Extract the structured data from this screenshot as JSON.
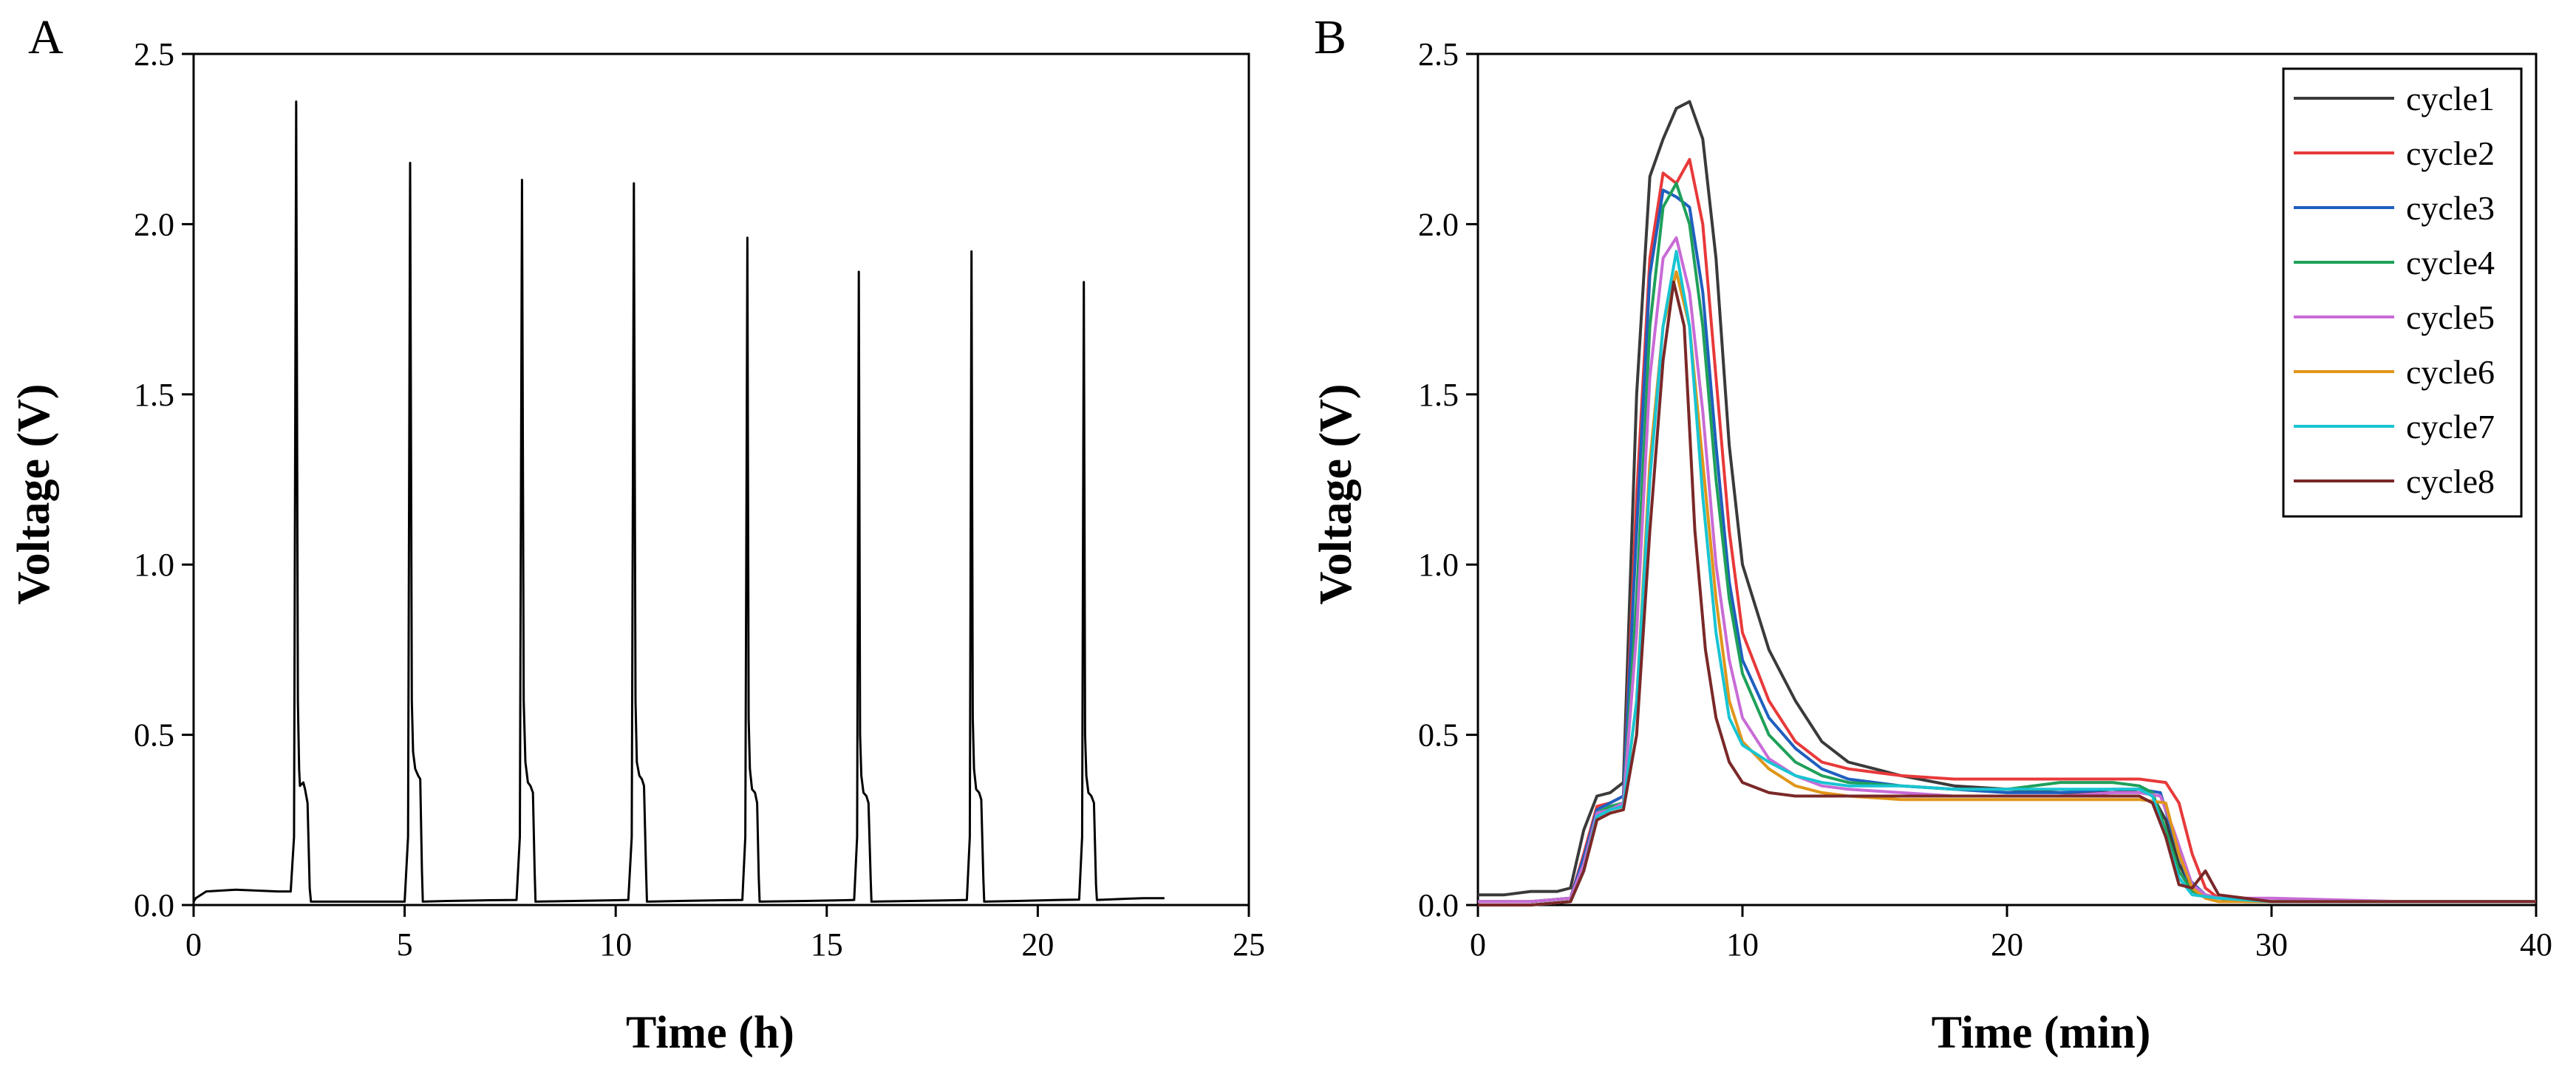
{
  "chart_data": [
    {
      "panel_label": "A",
      "type": "line",
      "xlabel": "Time (h)",
      "ylabel": "Voltage (V)",
      "xlim": [
        0,
        25
      ],
      "ylim": [
        0,
        2.5
      ],
      "xticks": [
        0,
        5,
        10,
        15,
        20,
        25
      ],
      "yticks": [
        0.0,
        0.5,
        1.0,
        1.5,
        2.0,
        2.5
      ],
      "xtick_labels": [
        "0",
        "5",
        "10",
        "15",
        "20",
        "25"
      ],
      "ytick_labels": [
        "0.0",
        "0.5",
        "1.0",
        "1.5",
        "2.0",
        "2.5"
      ],
      "grid": false,
      "series": [
        {
          "name": "voltage",
          "color": "#000000",
          "x": [
            0.0,
            0.05,
            0.3,
            1.0,
            2.0,
            2.3,
            2.38,
            2.43,
            2.47,
            2.5,
            2.52,
            2.6,
            2.64,
            2.7,
            2.75,
            2.78,
            3.0,
            4.0,
            5.0,
            5.08,
            5.13,
            5.17,
            5.2,
            5.25,
            5.32,
            5.37,
            5.41,
            5.43,
            6.0,
            7.0,
            7.65,
            7.73,
            7.78,
            7.82,
            7.86,
            7.92,
            7.98,
            8.04,
            8.08,
            8.1,
            9.0,
            10.0,
            10.3,
            10.38,
            10.43,
            10.47,
            10.5,
            10.56,
            10.62,
            10.67,
            10.72,
            10.74,
            11.5,
            12.5,
            13.0,
            13.07,
            13.12,
            13.15,
            13.18,
            13.23,
            13.3,
            13.35,
            13.39,
            13.41,
            14.5,
            15.4,
            15.65,
            15.72,
            15.76,
            15.79,
            15.82,
            15.87,
            15.94,
            15.99,
            16.04,
            16.06,
            17.0,
            18.0,
            18.32,
            18.39,
            18.43,
            18.46,
            18.49,
            18.54,
            18.61,
            18.66,
            18.71,
            18.73,
            19.5,
            20.5,
            20.98,
            21.05,
            21.09,
            21.12,
            21.15,
            21.2,
            21.27,
            21.33,
            21.38,
            21.4,
            22.0,
            22.5,
            23.0
          ],
          "y": [
            0.01,
            0.02,
            0.04,
            0.045,
            0.04,
            0.04,
            0.2,
            2.36,
            0.6,
            0.4,
            0.35,
            0.36,
            0.34,
            0.3,
            0.05,
            0.01,
            0.01,
            0.01,
            0.01,
            0.2,
            2.18,
            0.6,
            0.45,
            0.4,
            0.38,
            0.37,
            0.1,
            0.01,
            0.012,
            0.014,
            0.015,
            0.2,
            2.13,
            0.6,
            0.42,
            0.36,
            0.35,
            0.33,
            0.1,
            0.01,
            0.012,
            0.014,
            0.015,
            0.2,
            2.12,
            0.6,
            0.42,
            0.38,
            0.37,
            0.35,
            0.1,
            0.01,
            0.012,
            0.014,
            0.015,
            0.2,
            1.96,
            0.55,
            0.4,
            0.34,
            0.33,
            0.3,
            0.08,
            0.01,
            0.012,
            0.014,
            0.015,
            0.2,
            1.86,
            0.5,
            0.38,
            0.33,
            0.32,
            0.3,
            0.08,
            0.01,
            0.012,
            0.014,
            0.015,
            0.2,
            1.92,
            0.55,
            0.4,
            0.34,
            0.33,
            0.31,
            0.08,
            0.01,
            0.012,
            0.015,
            0.016,
            0.2,
            1.83,
            0.5,
            0.38,
            0.33,
            0.32,
            0.3,
            0.06,
            0.015,
            0.018,
            0.02,
            0.02
          ]
        }
      ]
    },
    {
      "panel_label": "B",
      "type": "line",
      "xlabel": "Time (min)",
      "ylabel": "Voltage (V)",
      "xlim": [
        0,
        40
      ],
      "ylim": [
        0,
        2.5
      ],
      "xticks": [
        0,
        10,
        20,
        30,
        40
      ],
      "yticks": [
        0.0,
        0.5,
        1.0,
        1.5,
        2.0,
        2.5
      ],
      "xtick_labels": [
        "0",
        "10",
        "20",
        "30",
        "40"
      ],
      "ytick_labels": [
        "0.0",
        "0.5",
        "1.0",
        "1.5",
        "2.0",
        "2.5"
      ],
      "grid": false,
      "legend_position": "top-right",
      "series": [
        {
          "name": "cycle1",
          "color": "#3a3a3a",
          "x": [
            0,
            1,
            2,
            3,
            3.5,
            4,
            4.5,
            5,
            5.5,
            6,
            6.5,
            7,
            7.5,
            8,
            8.5,
            9,
            9.5,
            10,
            11,
            12,
            13,
            14,
            16,
            18,
            20,
            22,
            24,
            25,
            25.5,
            26,
            26.5,
            27,
            27.5,
            28,
            29,
            30,
            35,
            40
          ],
          "y": [
            0.03,
            0.03,
            0.04,
            0.04,
            0.05,
            0.22,
            0.32,
            0.33,
            0.36,
            1.5,
            2.14,
            2.25,
            2.34,
            2.36,
            2.25,
            1.9,
            1.35,
            1.0,
            0.75,
            0.6,
            0.48,
            0.42,
            0.38,
            0.35,
            0.34,
            0.33,
            0.33,
            0.34,
            0.32,
            0.25,
            0.12,
            0.05,
            0.03,
            0.02,
            0.01,
            0.01,
            0.01,
            0.01
          ]
        },
        {
          "name": "cycle2",
          "color": "#e8393a",
          "x": [
            0,
            2,
            3.5,
            4,
            4.5,
            5,
            5.5,
            6,
            6.5,
            7,
            7.5,
            8,
            8.5,
            9,
            9.5,
            10,
            11,
            12,
            13,
            14,
            16,
            18,
            20,
            22,
            24,
            25,
            26,
            26.5,
            27,
            27.5,
            28,
            30,
            35,
            40
          ],
          "y": [
            0.01,
            0.01,
            0.02,
            0.15,
            0.29,
            0.3,
            0.32,
            1.2,
            1.9,
            2.15,
            2.12,
            2.19,
            2.0,
            1.55,
            1.1,
            0.8,
            0.6,
            0.48,
            0.42,
            0.4,
            0.38,
            0.37,
            0.37,
            0.37,
            0.37,
            0.37,
            0.36,
            0.3,
            0.15,
            0.05,
            0.02,
            0.01,
            0.01,
            0.01
          ]
        },
        {
          "name": "cycle3",
          "color": "#1f5fbf",
          "x": [
            0,
            2,
            3.5,
            4,
            4.5,
            5,
            5.5,
            6,
            6.5,
            7,
            7.5,
            8,
            8.5,
            9,
            9.5,
            10,
            11,
            12,
            13,
            14,
            16,
            18,
            20,
            22,
            24,
            25,
            25.8,
            26.3,
            26.8,
            27.5,
            28,
            30,
            35,
            40
          ],
          "y": [
            0.01,
            0.01,
            0.02,
            0.14,
            0.28,
            0.3,
            0.32,
            1.1,
            1.85,
            2.1,
            2.08,
            2.05,
            1.8,
            1.35,
            0.95,
            0.72,
            0.55,
            0.46,
            0.4,
            0.37,
            0.35,
            0.34,
            0.33,
            0.33,
            0.34,
            0.34,
            0.33,
            0.2,
            0.08,
            0.03,
            0.02,
            0.01,
            0.01,
            0.01
          ]
        },
        {
          "name": "cycle4",
          "color": "#1fa05a",
          "x": [
            0,
            2,
            3.5,
            4,
            4.5,
            5,
            5.5,
            6,
            6.5,
            7,
            7.5,
            8,
            8.5,
            9,
            9.5,
            10,
            11,
            12,
            13,
            14,
            16,
            18,
            20,
            22,
            24,
            25,
            25.5,
            26,
            26.5,
            27,
            28,
            30,
            35,
            40
          ],
          "y": [
            0.01,
            0.01,
            0.02,
            0.12,
            0.27,
            0.29,
            0.3,
            0.9,
            1.7,
            2.05,
            2.12,
            2.0,
            1.7,
            1.25,
            0.9,
            0.68,
            0.5,
            0.42,
            0.38,
            0.36,
            0.35,
            0.34,
            0.34,
            0.36,
            0.36,
            0.35,
            0.33,
            0.22,
            0.1,
            0.04,
            0.02,
            0.01,
            0.01,
            0.01
          ]
        },
        {
          "name": "cycle5",
          "color": "#c86bd6",
          "x": [
            0,
            2,
            3.5,
            4,
            4.5,
            5,
            5.5,
            6,
            6.5,
            7,
            7.5,
            8,
            8.5,
            9,
            9.5,
            10,
            11,
            12,
            13,
            14,
            16,
            18,
            20,
            22,
            24,
            25,
            25.8,
            26.3,
            27,
            27.5,
            28,
            30,
            35,
            40
          ],
          "y": [
            0.01,
            0.01,
            0.02,
            0.12,
            0.27,
            0.28,
            0.3,
            0.8,
            1.55,
            1.9,
            1.96,
            1.8,
            1.45,
            1.0,
            0.72,
            0.55,
            0.43,
            0.38,
            0.35,
            0.34,
            0.33,
            0.32,
            0.32,
            0.32,
            0.33,
            0.33,
            0.32,
            0.22,
            0.06,
            0.03,
            0.02,
            0.02,
            0.01,
            0.01
          ]
        },
        {
          "name": "cycle6",
          "color": "#e0961a",
          "x": [
            0,
            2,
            3.5,
            4,
            4.5,
            5,
            5.5,
            6,
            6.5,
            7,
            7.5,
            8,
            8.5,
            9,
            9.5,
            10,
            11,
            12,
            13,
            14,
            16,
            18,
            20,
            22,
            24,
            25,
            26,
            26.5,
            27,
            27.5,
            28,
            30,
            35,
            40
          ],
          "y": [
            0.0,
            0.0,
            0.01,
            0.1,
            0.25,
            0.27,
            0.28,
            0.6,
            1.3,
            1.7,
            1.86,
            1.7,
            1.3,
            0.9,
            0.6,
            0.48,
            0.4,
            0.35,
            0.33,
            0.32,
            0.31,
            0.31,
            0.31,
            0.31,
            0.31,
            0.31,
            0.3,
            0.15,
            0.05,
            0.02,
            0.01,
            0.01,
            0.01,
            0.01
          ]
        },
        {
          "name": "cycle7",
          "color": "#19c4d2",
          "x": [
            0,
            2,
            3.5,
            4,
            4.5,
            5,
            5.5,
            6,
            6.5,
            7,
            7.5,
            8,
            8.5,
            9,
            9.5,
            10,
            11,
            12,
            13,
            14,
            16,
            18,
            20,
            22,
            24,
            25,
            25.5,
            26,
            26.5,
            27,
            28,
            30,
            35,
            40
          ],
          "y": [
            0.0,
            0.0,
            0.01,
            0.1,
            0.26,
            0.28,
            0.29,
            0.6,
            1.25,
            1.7,
            1.92,
            1.7,
            1.2,
            0.8,
            0.55,
            0.47,
            0.42,
            0.38,
            0.36,
            0.35,
            0.35,
            0.34,
            0.34,
            0.34,
            0.34,
            0.34,
            0.32,
            0.2,
            0.08,
            0.03,
            0.02,
            0.01,
            0.01,
            0.01
          ]
        },
        {
          "name": "cycle8",
          "color": "#7a2828",
          "x": [
            0,
            2,
            3.5,
            4,
            4.5,
            5,
            5.5,
            6,
            6.5,
            7,
            7.4,
            7.8,
            8.2,
            8.6,
            9,
            9.5,
            10,
            11,
            12,
            13,
            14,
            16,
            18,
            20,
            22,
            24,
            25,
            25.5,
            26,
            26.5,
            27,
            27.5,
            28,
            30,
            35,
            40
          ],
          "y": [
            0.0,
            0.0,
            0.01,
            0.1,
            0.25,
            0.27,
            0.28,
            0.5,
            1.1,
            1.6,
            1.83,
            1.7,
            1.1,
            0.75,
            0.55,
            0.42,
            0.36,
            0.33,
            0.32,
            0.32,
            0.32,
            0.32,
            0.32,
            0.32,
            0.32,
            0.32,
            0.32,
            0.3,
            0.2,
            0.06,
            0.05,
            0.1,
            0.03,
            0.01,
            0.01,
            0.01
          ]
        }
      ]
    }
  ]
}
